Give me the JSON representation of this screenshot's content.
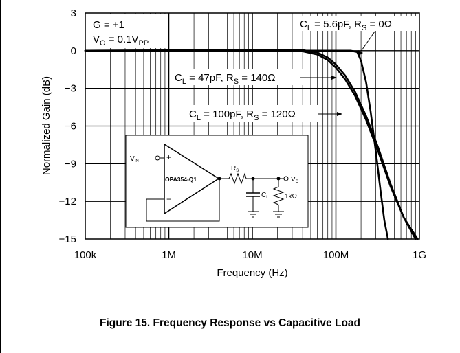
{
  "chart_data": {
    "type": "line",
    "xscale": "log",
    "xlim": [
      100000,
      1000000000
    ],
    "ylim": [
      -15,
      3
    ],
    "xlabel": "Frequency (Hz)",
    "ylabel": "Normalized Gain (dB)",
    "x_ticks": [
      {
        "value": 100000,
        "label": "100k"
      },
      {
        "value": 1000000,
        "label": "1M"
      },
      {
        "value": 10000000,
        "label": "10M"
      },
      {
        "value": 100000000,
        "label": "100M"
      },
      {
        "value": 1000000000,
        "label": "1G"
      }
    ],
    "y_ticks": [
      {
        "value": 3,
        "label": "3"
      },
      {
        "value": 0,
        "label": "0"
      },
      {
        "value": -3,
        "label": "−3"
      },
      {
        "value": -6,
        "label": "−6"
      },
      {
        "value": -9,
        "label": "−9"
      },
      {
        "value": -12,
        "label": "−12"
      },
      {
        "value": -15,
        "label": "−15"
      }
    ],
    "grid": true,
    "conditions": [
      "G = +1",
      "V_O = 0.1V_PP"
    ],
    "series": [
      {
        "name": "C_L = 5.6pF, R_S = 0Ω",
        "x": [
          100000,
          10000000,
          150000000,
          180000000,
          200000000,
          230000000,
          260000000,
          300000000,
          340000000,
          380000000,
          420000000
        ],
        "y": [
          0,
          0,
          0,
          -0.1,
          -0.8,
          -2.5,
          -4.8,
          -8.0,
          -11.0,
          -13.5,
          -15
        ]
      },
      {
        "name": "C_L = 47pF, R_S = 140Ω",
        "x": [
          100000,
          10000000,
          20000000,
          40000000,
          60000000,
          80000000,
          100000000,
          130000000,
          170000000,
          230000000,
          320000000,
          450000000,
          650000000,
          900000000
        ],
        "y": [
          0,
          0.05,
          0.08,
          0.05,
          -0.15,
          -0.55,
          -1.1,
          -2.0,
          -3.3,
          -5.2,
          -7.7,
          -10.6,
          -13.3,
          -15
        ]
      },
      {
        "name": "C_L = 100pF, R_S = 120Ω",
        "x": [
          100000,
          10000000,
          20000000,
          40000000,
          60000000,
          80000000,
          100000000,
          130000000,
          170000000,
          230000000,
          320000000,
          450000000,
          650000000,
          950000000
        ],
        "y": [
          0,
          0.05,
          0.05,
          -0.05,
          -0.3,
          -0.75,
          -1.35,
          -2.3,
          -3.6,
          -5.5,
          -8.0,
          -10.8,
          -13.3,
          -15
        ]
      }
    ]
  },
  "annotations": {
    "cond1": {
      "pre": "G = +1"
    },
    "cond2": {
      "pre": "V",
      "sub": "O",
      "mid": " = 0.1V",
      "sub2": "PP"
    },
    "s1": {
      "a": "C",
      "as": "L",
      "b": " = 5.6pF, R",
      "bs": "S",
      "c": " = 0Ω"
    },
    "s2": {
      "a": "C",
      "as": "L",
      "b": " = 47pF, R",
      "bs": "S",
      "c": " = 140Ω"
    },
    "s3": {
      "a": "C",
      "as": "L",
      "b": " = 100pF, R",
      "bs": "S",
      "c": " = 120Ω"
    }
  },
  "schematic": {
    "vin": "V",
    "vin_sub": "IN",
    "plus": "+",
    "minus": "−",
    "opamp": "OPA354-Q1",
    "rs": "R",
    "rs_sub": "S",
    "cl": "C",
    "cl_sub": "L",
    "rload": "1kΩ",
    "vo": "V",
    "vo_sub": "O"
  },
  "caption": "Figure 15. Frequency Response vs Capacitive Load"
}
